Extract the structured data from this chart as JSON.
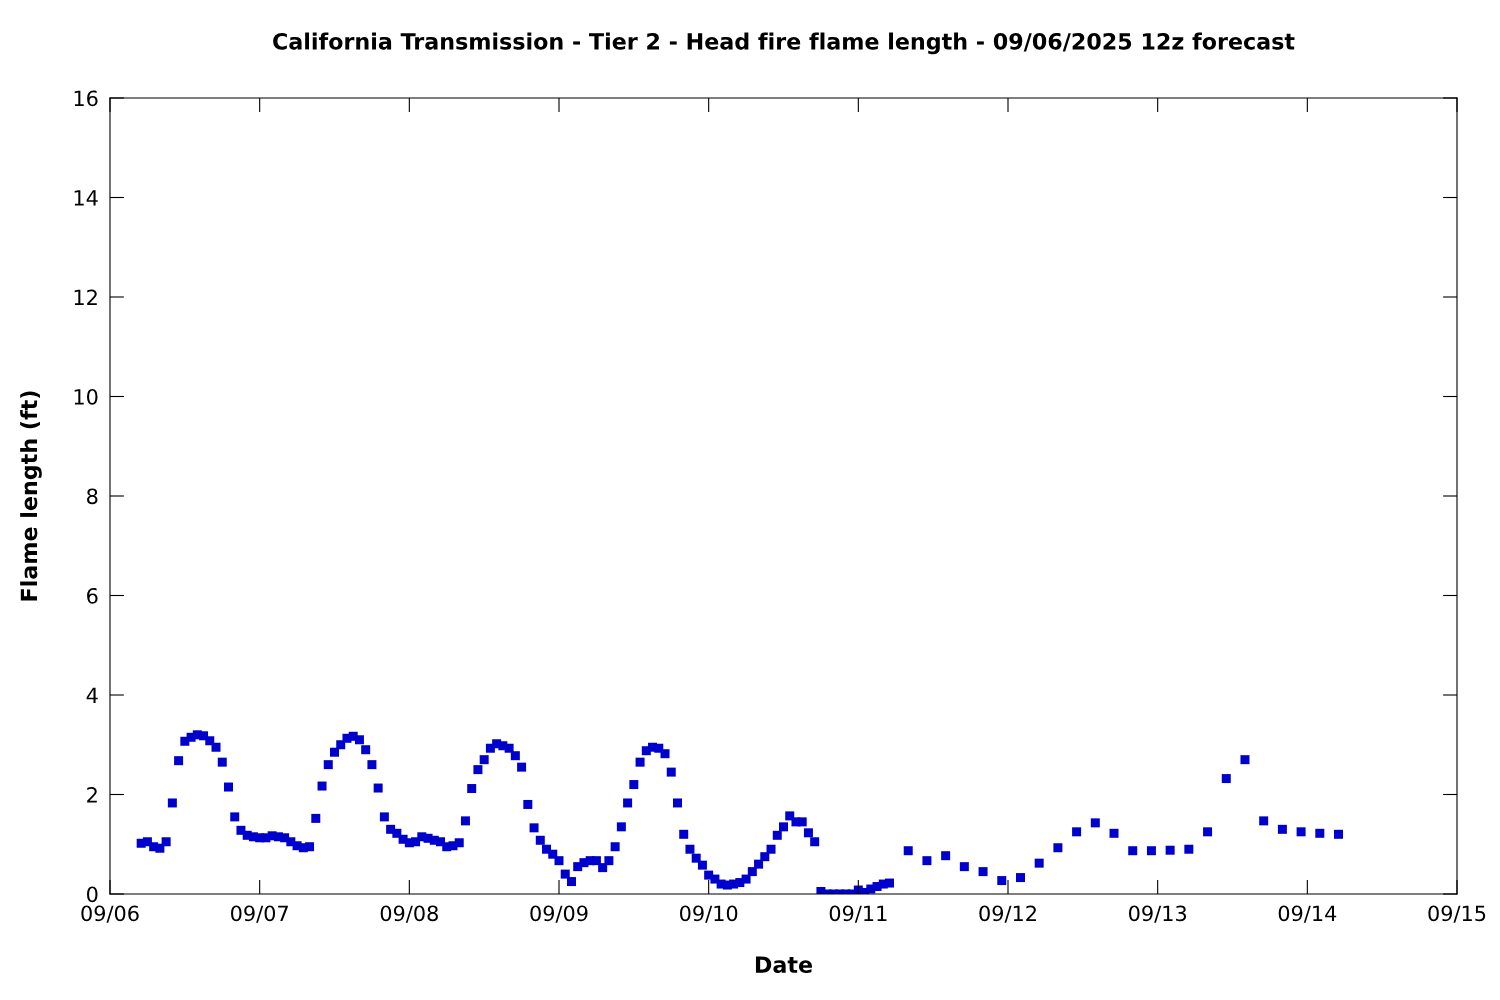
{
  "chart_data": {
    "type": "scatter",
    "title": "California Transmission - Tier 2 - Head fire flame length - 09/06/2025 12z forecast",
    "xlabel": "Date",
    "ylabel": "Flame length (ft)",
    "marker": "square",
    "grid": false,
    "x": [
      "2025-09-06T05:00",
      "2025-09-06T06:00",
      "2025-09-06T07:00",
      "2025-09-06T08:00",
      "2025-09-06T09:00",
      "2025-09-06T10:00",
      "2025-09-06T11:00",
      "2025-09-06T12:00",
      "2025-09-06T13:00",
      "2025-09-06T14:00",
      "2025-09-06T15:00",
      "2025-09-06T16:00",
      "2025-09-06T17:00",
      "2025-09-06T18:00",
      "2025-09-06T19:00",
      "2025-09-06T20:00",
      "2025-09-06T21:00",
      "2025-09-06T22:00",
      "2025-09-06T23:00",
      "2025-09-07T00:00",
      "2025-09-07T01:00",
      "2025-09-07T02:00",
      "2025-09-07T03:00",
      "2025-09-07T04:00",
      "2025-09-07T05:00",
      "2025-09-07T06:00",
      "2025-09-07T07:00",
      "2025-09-07T08:00",
      "2025-09-07T09:00",
      "2025-09-07T10:00",
      "2025-09-07T11:00",
      "2025-09-07T12:00",
      "2025-09-07T13:00",
      "2025-09-07T14:00",
      "2025-09-07T15:00",
      "2025-09-07T16:00",
      "2025-09-07T17:00",
      "2025-09-07T18:00",
      "2025-09-07T19:00",
      "2025-09-07T20:00",
      "2025-09-07T21:00",
      "2025-09-07T22:00",
      "2025-09-07T23:00",
      "2025-09-08T00:00",
      "2025-09-08T01:00",
      "2025-09-08T02:00",
      "2025-09-08T03:00",
      "2025-09-08T04:00",
      "2025-09-08T05:00",
      "2025-09-08T06:00",
      "2025-09-08T07:00",
      "2025-09-08T08:00",
      "2025-09-08T09:00",
      "2025-09-08T10:00",
      "2025-09-08T11:00",
      "2025-09-08T12:00",
      "2025-09-08T13:00",
      "2025-09-08T14:00",
      "2025-09-08T15:00",
      "2025-09-08T16:00",
      "2025-09-08T17:00",
      "2025-09-08T18:00",
      "2025-09-08T19:00",
      "2025-09-08T20:00",
      "2025-09-08T21:00",
      "2025-09-08T22:00",
      "2025-09-08T23:00",
      "2025-09-09T00:00",
      "2025-09-09T01:00",
      "2025-09-09T02:00",
      "2025-09-09T03:00",
      "2025-09-09T04:00",
      "2025-09-09T05:00",
      "2025-09-09T06:00",
      "2025-09-09T07:00",
      "2025-09-09T08:00",
      "2025-09-09T09:00",
      "2025-09-09T10:00",
      "2025-09-09T11:00",
      "2025-09-09T12:00",
      "2025-09-09T13:00",
      "2025-09-09T14:00",
      "2025-09-09T15:00",
      "2025-09-09T16:00",
      "2025-09-09T17:00",
      "2025-09-09T18:00",
      "2025-09-09T19:00",
      "2025-09-09T20:00",
      "2025-09-09T21:00",
      "2025-09-09T22:00",
      "2025-09-09T23:00",
      "2025-09-10T00:00",
      "2025-09-10T01:00",
      "2025-09-10T02:00",
      "2025-09-10T03:00",
      "2025-09-10T04:00",
      "2025-09-10T05:00",
      "2025-09-10T06:00",
      "2025-09-10T07:00",
      "2025-09-10T08:00",
      "2025-09-10T09:00",
      "2025-09-10T10:00",
      "2025-09-10T11:00",
      "2025-09-10T12:00",
      "2025-09-10T13:00",
      "2025-09-10T14:00",
      "2025-09-10T15:00",
      "2025-09-10T16:00",
      "2025-09-10T17:00",
      "2025-09-10T18:00",
      "2025-09-10T19:00",
      "2025-09-10T20:00",
      "2025-09-10T21:00",
      "2025-09-10T22:00",
      "2025-09-10T23:00",
      "2025-09-11T00:00",
      "2025-09-11T01:00",
      "2025-09-11T02:00",
      "2025-09-11T03:00",
      "2025-09-11T04:00",
      "2025-09-11T05:00",
      "2025-09-11T08:00",
      "2025-09-11T11:00",
      "2025-09-11T14:00",
      "2025-09-11T17:00",
      "2025-09-11T20:00",
      "2025-09-11T23:00",
      "2025-09-12T02:00",
      "2025-09-12T05:00",
      "2025-09-12T08:00",
      "2025-09-12T11:00",
      "2025-09-12T14:00",
      "2025-09-12T17:00",
      "2025-09-12T20:00",
      "2025-09-12T23:00",
      "2025-09-13T02:00",
      "2025-09-13T05:00",
      "2025-09-13T08:00",
      "2025-09-13T11:00",
      "2025-09-13T14:00",
      "2025-09-13T17:00",
      "2025-09-13T20:00",
      "2025-09-13T23:00",
      "2025-09-14T02:00",
      "2025-09-14T05:00"
    ],
    "series": [
      {
        "color": "#0000cc",
        "values": [
          1.02,
          1.05,
          0.95,
          0.92,
          1.05,
          1.83,
          2.68,
          3.07,
          3.15,
          3.2,
          3.18,
          3.08,
          2.95,
          2.65,
          2.15,
          1.55,
          1.28,
          1.18,
          1.15,
          1.13,
          1.13,
          1.17,
          1.15,
          1.13,
          1.05,
          0.97,
          0.93,
          0.95,
          1.52,
          2.17,
          2.6,
          2.85,
          3.0,
          3.13,
          3.17,
          3.1,
          2.9,
          2.6,
          2.13,
          1.55,
          1.3,
          1.22,
          1.1,
          1.03,
          1.05,
          1.15,
          1.12,
          1.08,
          1.05,
          0.95,
          0.97,
          1.03,
          1.47,
          2.12,
          2.5,
          2.7,
          2.93,
          3.02,
          2.98,
          2.93,
          2.78,
          2.55,
          1.8,
          1.33,
          1.08,
          0.9,
          0.8,
          0.67,
          0.4,
          0.25,
          0.55,
          0.63,
          0.67,
          0.67,
          0.53,
          0.67,
          0.95,
          1.35,
          1.83,
          2.2,
          2.65,
          2.88,
          2.95,
          2.93,
          2.82,
          2.45,
          1.83,
          1.2,
          0.9,
          0.72,
          0.58,
          0.38,
          0.3,
          0.2,
          0.18,
          0.2,
          0.23,
          0.3,
          0.45,
          0.6,
          0.75,
          0.9,
          1.18,
          1.35,
          1.57,
          1.45,
          1.45,
          1.23,
          1.05,
          0.05,
          0.0,
          0.0,
          0.0,
          0.0,
          0.0,
          0.08,
          0.03,
          0.1,
          0.15,
          0.2,
          0.22,
          0.87,
          0.67,
          0.77,
          0.55,
          0.45,
          0.27,
          0.33,
          0.62,
          0.93,
          1.25,
          1.43,
          1.22,
          0.87,
          0.87,
          0.88,
          0.9,
          1.25,
          2.32,
          2.7,
          1.47,
          1.3,
          1.25,
          1.22,
          1.2
        ]
      }
    ],
    "xlim": [
      "2025-09-06",
      "2025-09-15"
    ],
    "xticks": [
      {
        "value": "2025-09-06",
        "label": "09/06"
      },
      {
        "value": "2025-09-07",
        "label": "09/07"
      },
      {
        "value": "2025-09-08",
        "label": "09/08"
      },
      {
        "value": "2025-09-09",
        "label": "09/09"
      },
      {
        "value": "2025-09-10",
        "label": "09/10"
      },
      {
        "value": "2025-09-11",
        "label": "09/11"
      },
      {
        "value": "2025-09-12",
        "label": "09/12"
      },
      {
        "value": "2025-09-13",
        "label": "09/13"
      },
      {
        "value": "2025-09-14",
        "label": "09/14"
      },
      {
        "value": "2025-09-15",
        "label": "09/15"
      }
    ],
    "ylim": [
      0,
      16
    ],
    "yticks": [
      0,
      2,
      4,
      6,
      8,
      10,
      12,
      14,
      16
    ]
  }
}
